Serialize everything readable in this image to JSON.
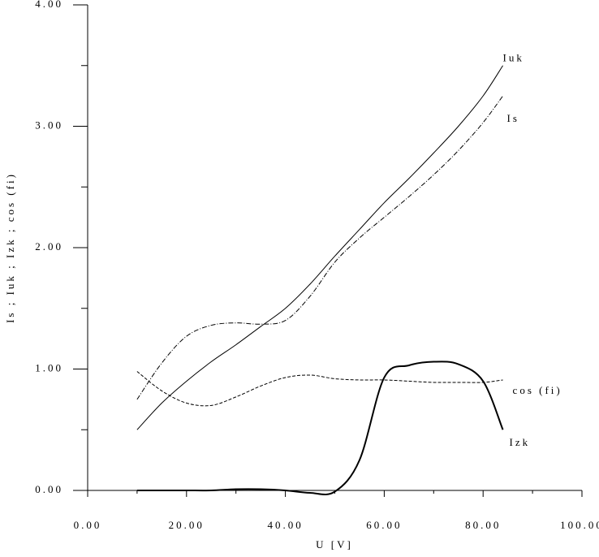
{
  "chart_data": {
    "type": "line",
    "x_label": "U [V]",
    "y_label": "Is ; Iuk ; Izk ; cos (fi)",
    "xlim": [
      0,
      100
    ],
    "ylim": [
      0,
      4
    ],
    "xticks": [
      {
        "value": 0,
        "label": "0.00"
      },
      {
        "value": 20,
        "label": "20.00"
      },
      {
        "value": 40,
        "label": "40.00"
      },
      {
        "value": 60,
        "label": "60.00"
      },
      {
        "value": 80,
        "label": "80.00"
      },
      {
        "value": 100,
        "label": "100.00"
      }
    ],
    "yticks": [
      {
        "value": 0,
        "label": "0.00"
      },
      {
        "value": 1,
        "label": "1.00"
      },
      {
        "value": 2,
        "label": "2.00"
      },
      {
        "value": 3,
        "label": "3.00"
      },
      {
        "value": 4,
        "label": "4.00"
      }
    ],
    "xminor_ticks": [
      10,
      30,
      50,
      70,
      90
    ],
    "yminor_ticks": [
      0.5,
      1.5,
      2.5,
      3.5
    ],
    "x": [
      10,
      15,
      20,
      25,
      30,
      35,
      40,
      45,
      50,
      55,
      60,
      65,
      70,
      75,
      80,
      84
    ],
    "series": [
      {
        "name": "Iuk",
        "color": "#000000",
        "style": "solid",
        "width": 1,
        "values": [
          0.5,
          0.72,
          0.9,
          1.06,
          1.2,
          1.35,
          1.5,
          1.7,
          1.93,
          2.15,
          2.37,
          2.57,
          2.78,
          3.0,
          3.25,
          3.5
        ]
      },
      {
        "name": "Is",
        "color": "#000000",
        "style": "dashdot",
        "width": 1,
        "values": [
          0.75,
          1.05,
          1.27,
          1.36,
          1.38,
          1.37,
          1.4,
          1.6,
          1.88,
          2.08,
          2.25,
          2.42,
          2.6,
          2.8,
          3.03,
          3.25
        ]
      },
      {
        "name": "cos (fi)",
        "color": "#000000",
        "style": "dashed",
        "width": 1,
        "values": [
          0.98,
          0.82,
          0.72,
          0.7,
          0.77,
          0.86,
          0.93,
          0.95,
          0.92,
          0.91,
          0.91,
          0.9,
          0.89,
          0.89,
          0.89,
          0.91
        ]
      },
      {
        "name": "Izk",
        "color": "#000000",
        "style": "solid",
        "width": 2,
        "values": [
          0,
          0,
          0,
          0,
          0.01,
          0.01,
          0,
          -0.02,
          -0.01,
          0.25,
          0.93,
          1.03,
          1.06,
          1.04,
          0.9,
          0.5
        ]
      }
    ]
  }
}
